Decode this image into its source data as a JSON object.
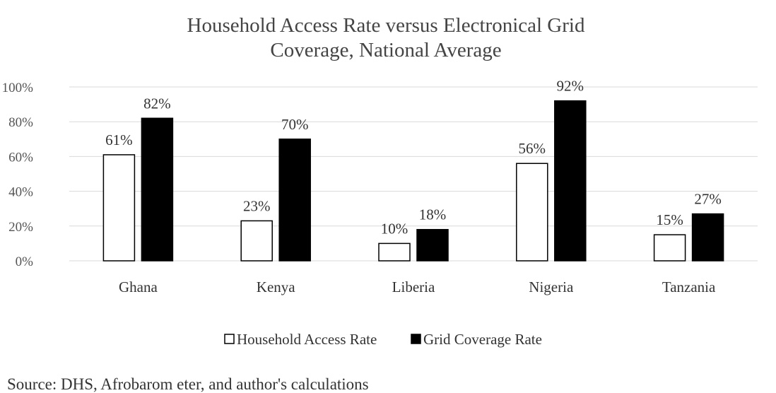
{
  "chart_data": {
    "type": "bar",
    "title": "Household Access Rate versus Electronical Grid Coverage, National Average",
    "title_lines": [
      "Household Access Rate versus Electronical Grid",
      "Coverage, National Average"
    ],
    "categories": [
      "Ghana",
      "Kenya",
      "Liberia",
      "Nigeria",
      "Tanzania"
    ],
    "series": [
      {
        "name": "Household Access Rate",
        "values": [
          61,
          23,
          10,
          56,
          15
        ],
        "labels": [
          "61%",
          "23%",
          "10%",
          "56%",
          "15%"
        ],
        "fill": "#ffffff",
        "stroke": "#000000"
      },
      {
        "name": "Grid Coverage Rate",
        "values": [
          82,
          70,
          18,
          92,
          27
        ],
        "labels": [
          "82%",
          "70%",
          "18%",
          "92%",
          "27%"
        ],
        "fill": "#000000",
        "stroke": "#000000"
      }
    ],
    "ylim": [
      0,
      100
    ],
    "yticks": [
      0,
      20,
      40,
      60,
      80,
      100
    ],
    "ytick_labels": [
      "0%",
      "20%",
      "40%",
      "60%",
      "80%",
      "100%"
    ],
    "grid": true,
    "legend_position": "bottom"
  },
  "source_note": "Source: DHS, Afrobarom eter, and author's calculations"
}
